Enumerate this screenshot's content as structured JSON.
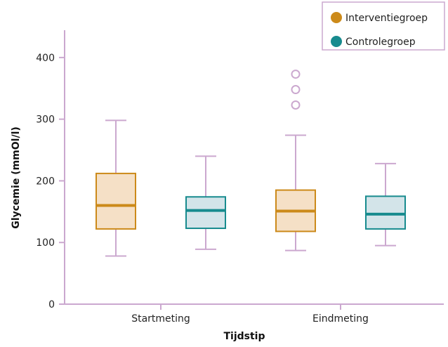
{
  "chart_data": {
    "type": "box",
    "title": "",
    "xlabel": "Tijdstip",
    "ylabel": "Glycemie (mmOl/l)",
    "ylim": [
      0,
      450
    ],
    "yticks": [
      0,
      100,
      200,
      300,
      400
    ],
    "categories": [
      "Startmeting",
      "Eindmeting"
    ],
    "series": [
      {
        "name": "Interventiegroep",
        "color": "#cc8a1a",
        "fill": "#f5e0c6",
        "boxes": [
          {
            "category": "Startmeting",
            "whisker_low": 78,
            "q1": 122,
            "median": 160,
            "q3": 212,
            "whisker_high": 298,
            "outliers": []
          },
          {
            "category": "Eindmeting",
            "whisker_low": 87,
            "q1": 118,
            "median": 151,
            "q3": 185,
            "whisker_high": 274,
            "outliers": [
              323,
              348,
              373
            ]
          }
        ]
      },
      {
        "name": "Controlegroep",
        "color": "#178b8e",
        "fill": "#d3e4e9",
        "boxes": [
          {
            "category": "Startmeting",
            "whisker_low": 89,
            "q1": 123,
            "median": 152,
            "q3": 174,
            "whisker_high": 240,
            "outliers": []
          },
          {
            "category": "Eindmeting",
            "whisker_low": 95,
            "q1": 122,
            "median": 146,
            "q3": 175,
            "whisker_high": 228,
            "outliers": []
          }
        ]
      }
    ],
    "colors": {
      "whisker": "#cba8cf",
      "axis": "#cba8cf",
      "outlier": "#cba8cf"
    },
    "legend_position": "top-right",
    "grid": false
  }
}
